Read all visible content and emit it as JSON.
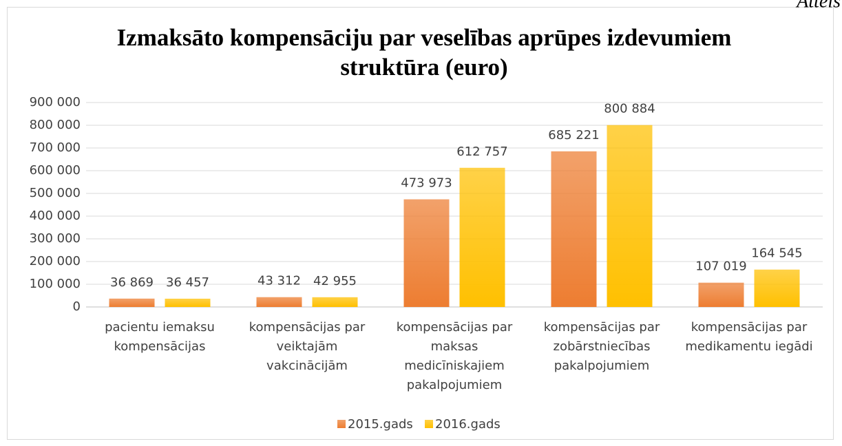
{
  "chart_data": {
    "type": "bar",
    "title": [
      "Izmaksāto kompensāciju par veselības aprūpes izdevumiem",
      "struktūra (euro)"
    ],
    "corner_note": "Attēls",
    "categories": [
      [
        "pacientu iemaksu",
        "kompensācijas"
      ],
      [
        "kompensācijas par",
        "veiktajām",
        "vakcinācijām"
      ],
      [
        "kompensācijas par",
        "maksas",
        "medicīniskajiem",
        "pakalpojumiem"
      ],
      [
        "kompensācijas par",
        "zobārstniecības",
        "pakalpojumiem"
      ],
      [
        "kompensācijas par",
        "medikamentu iegādi"
      ]
    ],
    "series": [
      {
        "name": "2015.gads",
        "color": "#ED7D31",
        "values": [
          36869,
          43312,
          473973,
          685221,
          107019
        ],
        "value_labels": [
          "36 869",
          "43 312",
          "473 973",
          "685 221",
          "107 019"
        ]
      },
      {
        "name": "2016.gads",
        "color": "#FFC000",
        "values": [
          36457,
          42955,
          612757,
          800884,
          164545
        ],
        "value_labels": [
          "36 457",
          "42 955",
          "612 757",
          "800 884",
          "164 545"
        ]
      }
    ],
    "ylim": [
      0,
      900000
    ],
    "yticks": [
      0,
      {
        "value": 100000,
        "label": "100 000"
      },
      {
        "value": 200000,
        "label": "200 000"
      },
      {
        "value": 300000,
        "label": "300 000"
      },
      {
        "value": 400000,
        "label": "400 000"
      },
      {
        "value": 500000,
        "label": "500 000"
      },
      {
        "value": 600000,
        "label": "600 000"
      },
      {
        "value": 700000,
        "label": "700 000"
      },
      {
        "value": 800000,
        "label": "800 000"
      },
      {
        "value": 900000,
        "label": "900 000"
      }
    ],
    "grid": true,
    "legend": "bottom"
  }
}
